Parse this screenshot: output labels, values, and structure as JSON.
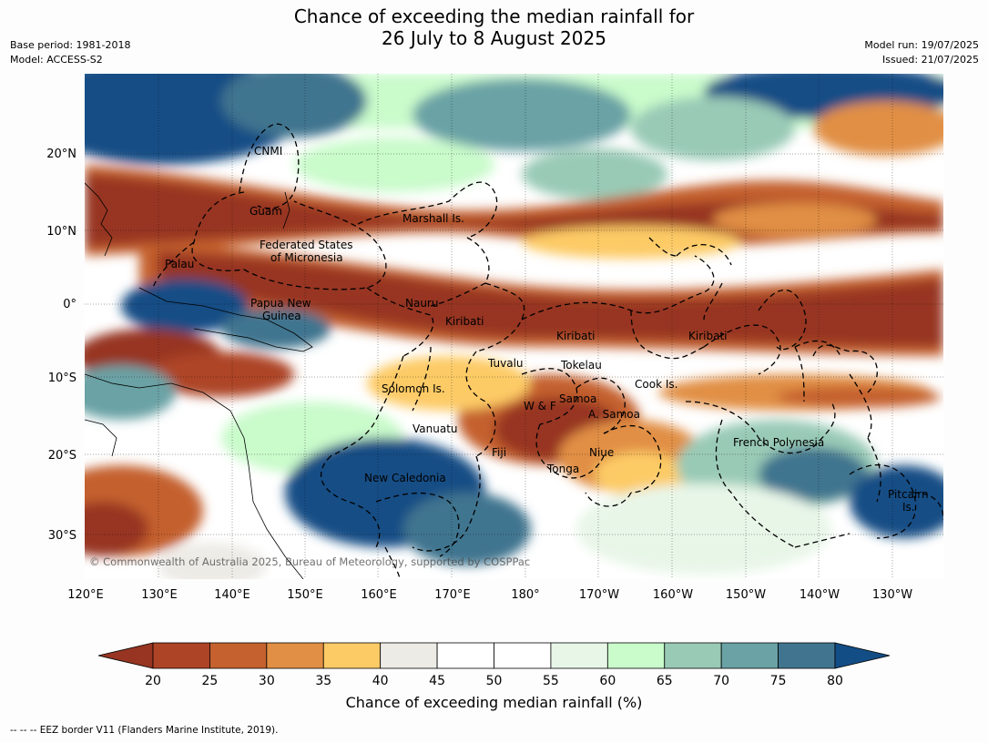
{
  "header": {
    "title_line1": "Chance of exceeding the median rainfall for",
    "title_line2": "26 July to 8 August 2025",
    "base_period": "Base period: 1981-2018",
    "model": "Model: ACCESS-S2",
    "model_run": "Model run: 19/07/2025",
    "issued": "Issued: 21/07/2025"
  },
  "map": {
    "lat_labels": [
      "20°N",
      "10°N",
      "0°",
      "10°S",
      "20°S",
      "30°S"
    ],
    "lon_labels": [
      "120°E",
      "130°E",
      "140°E",
      "150°E",
      "160°E",
      "170°E",
      "180°",
      "170°W",
      "160°W",
      "150°W",
      "140°W",
      "130°W"
    ],
    "copyright": "© Commonwealth of Australia 2025, Bureau of Meteorology, supported by COSPPac",
    "regions": [
      {
        "name": "cnmi",
        "text": "CNMI"
      },
      {
        "name": "guam",
        "text": "Guam"
      },
      {
        "name": "marshall",
        "text": "Marshall Is."
      },
      {
        "name": "fsm1",
        "text": "Federated States"
      },
      {
        "name": "fsm2",
        "text": "of Micronesia"
      },
      {
        "name": "palau",
        "text": "Palau"
      },
      {
        "name": "png1",
        "text": "Papua New"
      },
      {
        "name": "png2",
        "text": "Guinea"
      },
      {
        "name": "nauru",
        "text": "Nauru"
      },
      {
        "name": "kiribati1",
        "text": "Kiribati"
      },
      {
        "name": "kiribati2",
        "text": "Kiribati"
      },
      {
        "name": "kiribati3",
        "text": "Kiribati"
      },
      {
        "name": "tuvalu",
        "text": "Tuvalu"
      },
      {
        "name": "tokelau",
        "text": "Tokelau"
      },
      {
        "name": "cook",
        "text": "Cook Is."
      },
      {
        "name": "solomon",
        "text": "Solomon Is."
      },
      {
        "name": "samoa",
        "text": "Samoa"
      },
      {
        "name": "wf",
        "text": "W & F"
      },
      {
        "name": "asamoa",
        "text": "A. Samoa"
      },
      {
        "name": "vanuatu",
        "text": "Vanuatu"
      },
      {
        "name": "fiji",
        "text": "Fiji"
      },
      {
        "name": "niue",
        "text": "Niue"
      },
      {
        "name": "tonga",
        "text": "Tonga"
      },
      {
        "name": "frenchpoly",
        "text": "French Polynesia"
      },
      {
        "name": "newcal",
        "text": "New Caledonia"
      },
      {
        "name": "pitcairn1",
        "text": "Pitcairn"
      },
      {
        "name": "pitcairn2",
        "text": "Is."
      }
    ]
  },
  "colorbar": {
    "ticks": [
      "20",
      "25",
      "30",
      "35",
      "40",
      "45",
      "50",
      "55",
      "60",
      "65",
      "70",
      "75",
      "80"
    ],
    "colors": [
      "#973522",
      "#ad4426",
      "#c4612f",
      "#e18f44",
      "#fdcb66",
      "#edebe6",
      "#ffffff",
      "#ffffff",
      "#e8f6e8",
      "#c9fbcb",
      "#99cab6",
      "#6aa2a5",
      "#41758f",
      "#134d85"
    ],
    "label": "Chance of exceeding median rainfall (%)"
  },
  "footnote": "--  --  -- EEZ border V11 (Flanders Marine Institute, 2019)."
}
